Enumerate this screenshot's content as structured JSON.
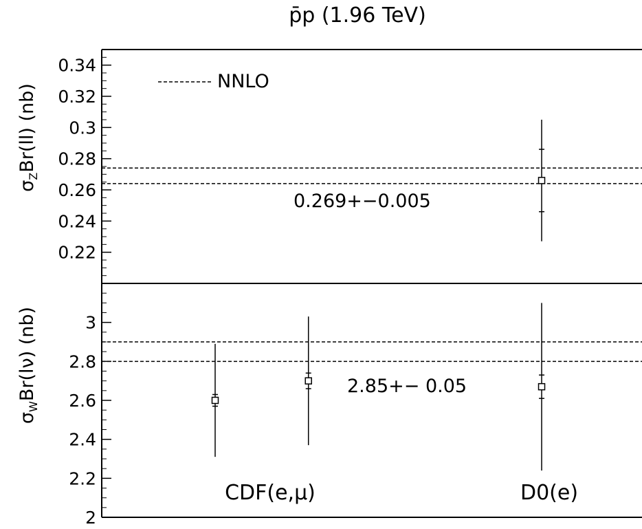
{
  "title": "p̄p (1.96 TeV)",
  "chart_data": [
    {
      "type": "scatter",
      "panel": "top",
      "ylabel": "σZBr(ll) (nb)",
      "ylabel_main": "σ",
      "ylabel_sub": "Z",
      "ylabel_rest": "Br(ll) (nb)",
      "ylim": [
        0.2,
        0.35
      ],
      "yticks": [
        "0.22",
        "0.24",
        "0.26",
        "0.28",
        "0.3",
        "0.32",
        "0.34"
      ],
      "ytick_values": [
        0.22,
        0.24,
        0.26,
        0.28,
        0.3,
        0.32,
        0.34
      ],
      "legend": {
        "label": "NNLO",
        "style": "dashed",
        "placement": "top-left"
      },
      "band": {
        "low": 0.264,
        "high": 0.274,
        "annotation": "0.269+−0.005"
      },
      "points": [
        {
          "label": "D0(e)",
          "x": 2,
          "y": 0.266,
          "err_stat": 0.02,
          "err_total_low": 0.039,
          "err_total_high": 0.039
        }
      ]
    },
    {
      "type": "scatter",
      "panel": "bottom",
      "ylabel": "σWBr(lν) (nb)",
      "ylabel_main": "σ",
      "ylabel_sub": "W",
      "ylabel_rest": "Br(lν) (nb)",
      "ylim": [
        2.0,
        3.2
      ],
      "yticks": [
        "2",
        "2.2",
        "2.4",
        "2.6",
        "2.8",
        "3"
      ],
      "ytick_values": [
        2.0,
        2.2,
        2.4,
        2.6,
        2.8,
        3.0
      ],
      "band": {
        "low": 2.8,
        "high": 2.9,
        "annotation": "2.85+− 0.05"
      },
      "points": [
        {
          "label": "CDF(e,μ)",
          "x": 0.6,
          "y": 2.6,
          "err_stat": 0.03,
          "err_total_low": 0.29,
          "err_total_high": 0.29
        },
        {
          "label": "CDF(e,μ)",
          "x": 1.0,
          "y": 2.7,
          "err_stat": 0.04,
          "err_total_low": 0.33,
          "err_total_high": 0.33
        },
        {
          "label": "D0(e)",
          "x": 2.0,
          "y": 2.67,
          "err_stat": 0.06,
          "err_total_low": 0.43,
          "err_total_high": 0.43
        }
      ],
      "category_labels": [
        {
          "text": "CDF(e,μ)",
          "x": 0.8
        },
        {
          "text": "D0(e)",
          "x": 2.0
        }
      ]
    }
  ]
}
